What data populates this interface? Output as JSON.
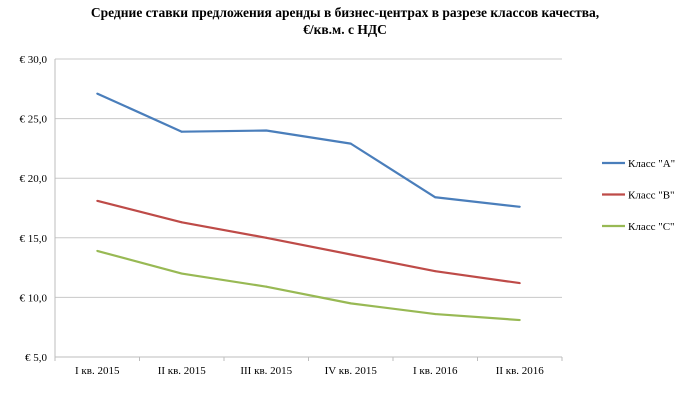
{
  "chart_data": {
    "type": "line",
    "title": [
      "Средние ставки предложения аренды в бизнес-центрах  в разрезе классов качества,",
      "€/кв.м. с НДС"
    ],
    "xlabel": "",
    "ylabel": "",
    "ylim": [
      5,
      30
    ],
    "yticks": [
      5,
      10,
      15,
      20,
      25,
      30
    ],
    "ytick_labels": [
      "€ 5,0",
      "€ 10,0",
      "€ 15,0",
      "€ 20,0",
      "€ 25,0",
      "€ 30,0"
    ],
    "categories": [
      "I кв. 2015",
      "II кв. 2015",
      "III кв. 2015",
      "IV кв. 2015",
      "I кв. 2016",
      "II кв. 2016"
    ],
    "grid": true,
    "legend_position": "right",
    "series": [
      {
        "name": "Класс \"A\"",
        "color": "#4a7ebb",
        "values": [
          27.1,
          23.9,
          24.0,
          22.9,
          18.4,
          17.6
        ]
      },
      {
        "name": "Класс \"B\"",
        "color": "#be4b48",
        "values": [
          18.1,
          16.3,
          15.0,
          13.6,
          12.2,
          11.2
        ]
      },
      {
        "name": "Класс \"C\"",
        "color": "#98b954",
        "values": [
          13.9,
          12.0,
          10.9,
          9.5,
          8.6,
          8.1
        ]
      }
    ]
  }
}
